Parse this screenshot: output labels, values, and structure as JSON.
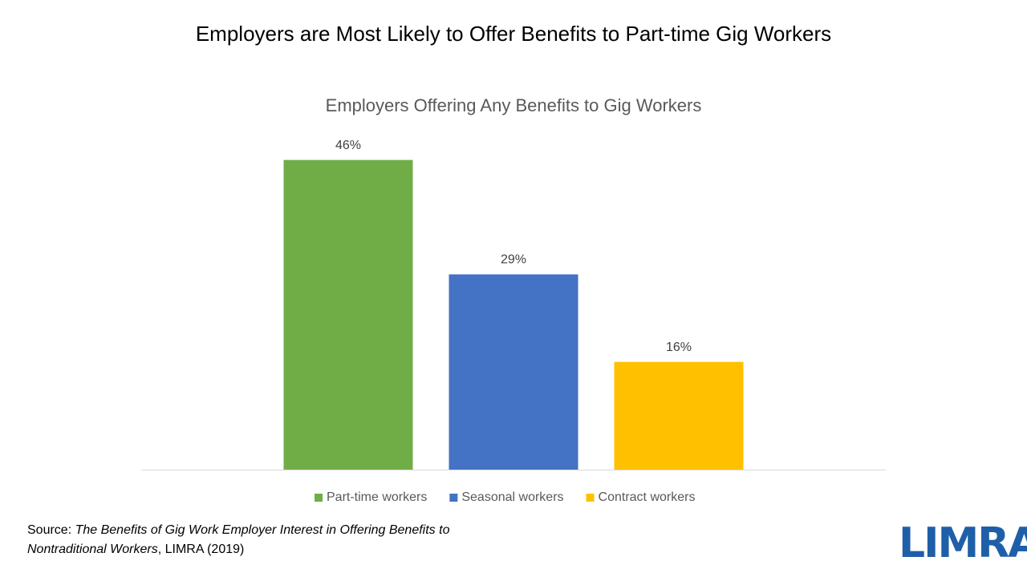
{
  "chart_data": {
    "type": "bar",
    "title": "Employers are Most Likely to Offer Benefits to Part-time Gig Workers",
    "subtitle": "Employers Offering Any Benefits to Gig Workers",
    "categories": [
      null
    ],
    "series": [
      {
        "name": "Part-time workers",
        "color": "#70ad47",
        "values": [
          46
        ],
        "value_labels": [
          "46%"
        ]
      },
      {
        "name": "Seasonal workers",
        "color": "#4472c4",
        "values": [
          29
        ],
        "value_labels": [
          "29%"
        ]
      },
      {
        "name": "Contract workers",
        "color": "#ffc000",
        "values": [
          16
        ],
        "value_labels": [
          "16%"
        ]
      }
    ],
    "ylim": [
      0,
      50
    ],
    "legend": "bottom",
    "source_label": "Source:",
    "source_title": "The Benefits of Gig Work Employer Interest in Offering Benefits to Nontraditional Workers",
    "source_publisher": ", LIMRA (2019)",
    "logo": "LIMRA"
  }
}
